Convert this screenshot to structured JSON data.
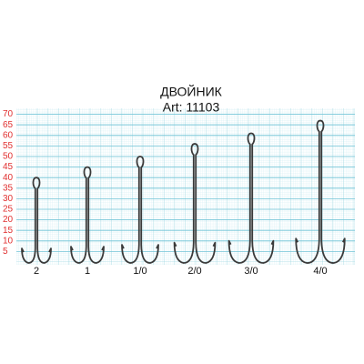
{
  "title": "ДВОЙНИК",
  "subtitle": "Art: 11103",
  "scale": {
    "ticks": [
      5,
      10,
      15,
      20,
      25,
      30,
      35,
      40,
      45,
      50,
      55,
      60,
      65,
      70
    ]
  },
  "hooks": [
    {
      "label": "2",
      "height": 40
    },
    {
      "label": "1",
      "height": 45
    },
    {
      "label": "1/0",
      "height": 50
    },
    {
      "label": "2/0",
      "height": 56
    },
    {
      "label": "3/0",
      "height": 61
    },
    {
      "label": "4/0",
      "height": 67
    }
  ]
}
